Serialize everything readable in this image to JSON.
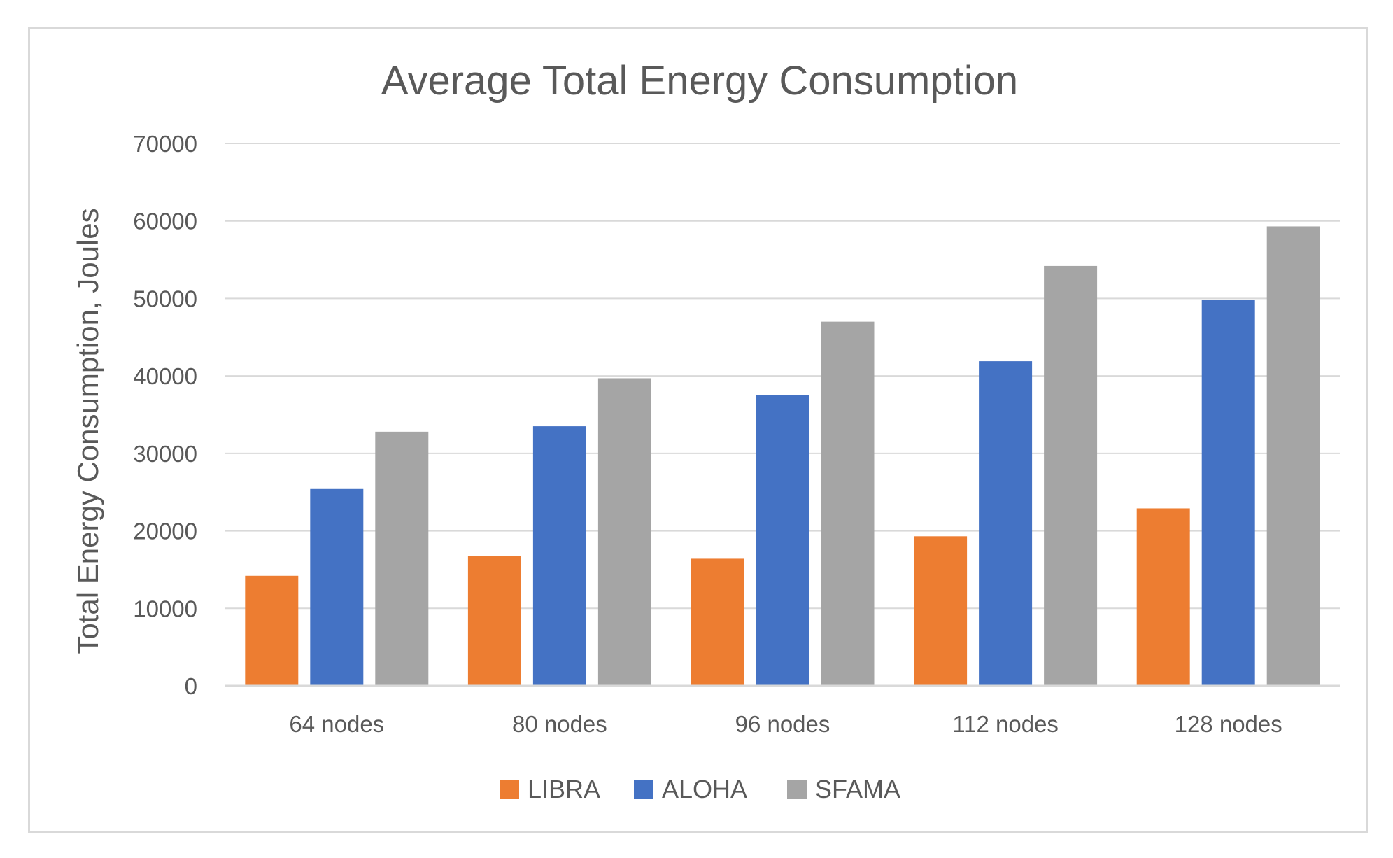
{
  "chart_data": {
    "type": "bar",
    "title": "Average Total Energy Consumption",
    "xlabel": "",
    "ylabel": "Total Energy Consumption,  Joules",
    "categories": [
      "64 nodes",
      "80 nodes",
      "96 nodes",
      "112 nodes",
      "128 nodes"
    ],
    "series": [
      {
        "name": "LIBRA",
        "color": "#ed7d31",
        "values": [
          14200,
          16800,
          16400,
          19300,
          22900
        ]
      },
      {
        "name": "ALOHA",
        "color": "#4472c4",
        "values": [
          25400,
          33500,
          37500,
          41900,
          49800
        ]
      },
      {
        "name": "SFAMA",
        "color": "#a5a5a5",
        "values": [
          32800,
          39700,
          47000,
          54200,
          59300
        ]
      }
    ],
    "ylim": [
      0,
      70000
    ],
    "yticks": [
      0,
      10000,
      20000,
      30000,
      40000,
      50000,
      60000,
      70000
    ],
    "grid": true,
    "legend": "bottom"
  }
}
